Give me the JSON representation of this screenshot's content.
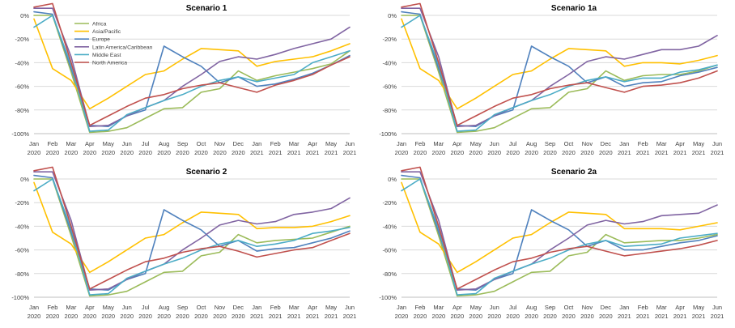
{
  "chart_data": [
    {
      "type": "line",
      "title": "Scenario 1",
      "xlabel": "",
      "ylabel": "",
      "ylim": [
        -100,
        0
      ],
      "yticks": [
        0,
        -20,
        -40,
        -60,
        -80,
        -100
      ],
      "ytick_labels": [
        "0%",
        "-20%",
        "-40%",
        "-60%",
        "-80%",
        "-100%"
      ],
      "categories": [
        "Jan 2020",
        "Feb 2020",
        "Mar 2020",
        "Apr 2020",
        "May 2020",
        "Jun 2020",
        "Jul 2020",
        "Aug 2020",
        "Sep 2020",
        "Oct 2020",
        "Nov 2020",
        "Dec 2020",
        "Jan 2021",
        "Feb 2021",
        "Mar 2021",
        "Apr 2021",
        "May 2021",
        "Jun 2021"
      ],
      "category_lines": [
        [
          "Jan",
          "2020"
        ],
        [
          "Feb",
          "2020"
        ],
        [
          "Mar",
          "2020"
        ],
        [
          "Apr",
          "2020"
        ],
        [
          "May",
          "2020"
        ],
        [
          "Jun",
          "2020"
        ],
        [
          "Jul",
          "2020"
        ],
        [
          "Aug",
          "2020"
        ],
        [
          "Sep",
          "2020"
        ],
        [
          "Oct",
          "2020"
        ],
        [
          "Nov",
          "2020"
        ],
        [
          "Dec",
          "2020"
        ],
        [
          "Jan",
          "2021"
        ],
        [
          "Feb",
          "2021"
        ],
        [
          "Mar",
          "2021"
        ],
        [
          "Apr",
          "2021"
        ],
        [
          "May",
          "2021"
        ],
        [
          "Jun",
          "2021"
        ]
      ],
      "legend": "top-left",
      "series": [
        {
          "name": "Africa",
          "color": "#9bbb59",
          "values": [
            0,
            0,
            -48,
            -99,
            -98,
            -95,
            -87,
            -79,
            -78,
            -65,
            -62,
            -47,
            -55,
            -51,
            -48,
            -45,
            -41,
            -30
          ]
        },
        {
          "name": "Asia/Pacific",
          "color": "#ffc000",
          "values": [
            -3,
            -45,
            -55,
            -79,
            -70,
            -60,
            -50,
            -47,
            -37,
            -28,
            -29,
            -30,
            -43,
            -39,
            -37,
            -35,
            -30,
            -24
          ]
        },
        {
          "name": "Europe",
          "color": "#4f81bd",
          "values": [
            3,
            1,
            -45,
            -93,
            -94,
            -85,
            -80,
            -26,
            -35,
            -43,
            -57,
            -52,
            -60,
            -58,
            -54,
            -49,
            -42,
            -34
          ]
        },
        {
          "name": "Latin America/Caribbean",
          "color": "#8064a2",
          "values": [
            6,
            6,
            -35,
            -94,
            -93,
            -85,
            -78,
            -72,
            -60,
            -50,
            -39,
            -35,
            -37,
            -33,
            -28,
            -24,
            -20,
            -10
          ]
        },
        {
          "name": "Middle East",
          "color": "#4bacc6",
          "values": [
            -10,
            0,
            -42,
            -98,
            -97,
            -84,
            -78,
            -72,
            -67,
            -60,
            -55,
            -52,
            -56,
            -53,
            -50,
            -40,
            -35,
            -30
          ]
        },
        {
          "name": "North America",
          "color": "#c0504d",
          "values": [
            7,
            10,
            -40,
            -93,
            -85,
            -77,
            -70,
            -67,
            -62,
            -59,
            -57,
            -61,
            -65,
            -59,
            -55,
            -50,
            -42,
            -35
          ]
        }
      ]
    },
    {
      "type": "line",
      "title": "Scenario 1a",
      "xlabel": "",
      "ylabel": "",
      "ylim": [
        -100,
        0
      ],
      "yticks": [
        0,
        -20,
        -40,
        -60,
        -80,
        -100
      ],
      "ytick_labels": [
        "0%",
        "-20%",
        "-40%",
        "-60%",
        "-80%",
        "-100%"
      ],
      "categories": [
        "Jan 2020",
        "Feb 2020",
        "Mar 2020",
        "Apr 2020",
        "May 2020",
        "Jun 2020",
        "Jul 2020",
        "Aug 2020",
        "Sep 2020",
        "Oct 2020",
        "Nov 2020",
        "Dec 2020",
        "Jan 2021",
        "Feb 2021",
        "Mar 2021",
        "Apr 2021",
        "May 2021",
        "Jun 2021"
      ],
      "category_lines": [
        [
          "Jan",
          "2020"
        ],
        [
          "Feb",
          "2020"
        ],
        [
          "Mar",
          "2020"
        ],
        [
          "Apr",
          "2020"
        ],
        [
          "May",
          "2020"
        ],
        [
          "Jun",
          "2020"
        ],
        [
          "Jul",
          "2020"
        ],
        [
          "Aug",
          "2020"
        ],
        [
          "Sep",
          "2020"
        ],
        [
          "Oct",
          "2020"
        ],
        [
          "Nov",
          "2020"
        ],
        [
          "Dec",
          "2020"
        ],
        [
          "Jan",
          "2021"
        ],
        [
          "Feb",
          "2021"
        ],
        [
          "Mar",
          "2021"
        ],
        [
          "Apr",
          "2021"
        ],
        [
          "May",
          "2021"
        ],
        [
          "Jun",
          "2021"
        ]
      ],
      "series": [
        {
          "name": "Africa",
          "color": "#9bbb59",
          "values": [
            0,
            0,
            -48,
            -99,
            -98,
            -95,
            -87,
            -79,
            -78,
            -65,
            -62,
            -47,
            -55,
            -51,
            -50,
            -50,
            -47,
            -42
          ]
        },
        {
          "name": "Asia/Pacific",
          "color": "#ffc000",
          "values": [
            -3,
            -45,
            -55,
            -79,
            -70,
            -60,
            -50,
            -47,
            -37,
            -28,
            -29,
            -30,
            -43,
            -40,
            -40,
            -41,
            -38,
            -34
          ]
        },
        {
          "name": "Europe",
          "color": "#4f81bd",
          "values": [
            3,
            1,
            -45,
            -93,
            -94,
            -85,
            -80,
            -26,
            -35,
            -43,
            -57,
            -52,
            -60,
            -57,
            -56,
            -51,
            -48,
            -44
          ]
        },
        {
          "name": "Latin America/Caribbean",
          "color": "#8064a2",
          "values": [
            6,
            6,
            -35,
            -94,
            -93,
            -85,
            -78,
            -72,
            -60,
            -50,
            -39,
            -35,
            -37,
            -33,
            -29,
            -29,
            -26,
            -17
          ]
        },
        {
          "name": "Middle East",
          "color": "#4bacc6",
          "values": [
            -10,
            0,
            -42,
            -98,
            -97,
            -84,
            -78,
            -72,
            -67,
            -60,
            -55,
            -52,
            -56,
            -53,
            -53,
            -48,
            -46,
            -42
          ]
        },
        {
          "name": "North America",
          "color": "#c0504d",
          "values": [
            7,
            10,
            -40,
            -93,
            -85,
            -77,
            -70,
            -67,
            -62,
            -59,
            -57,
            -61,
            -65,
            -60,
            -59,
            -57,
            -53,
            -47
          ]
        }
      ]
    },
    {
      "type": "line",
      "title": "Scenario 2",
      "xlabel": "",
      "ylabel": "",
      "ylim": [
        -100,
        0
      ],
      "yticks": [
        0,
        -20,
        -40,
        -60,
        -80,
        -100
      ],
      "ytick_labels": [
        "0%",
        "-20%",
        "-40%",
        "-60%",
        "-80%",
        "-100%"
      ],
      "categories": [
        "Jan 2020",
        "Feb 2020",
        "Mar 2020",
        "Apr 2020",
        "May 2020",
        "Jun 2020",
        "Jul 2020",
        "Aug 2020",
        "Sep 2020",
        "Oct 2020",
        "Nov 2020",
        "Dec 2020",
        "Jan 2021",
        "Feb 2021",
        "Mar 2021",
        "Apr 2021",
        "May 2021",
        "Jun 2021"
      ],
      "category_lines": [
        [
          "Jan",
          "2020"
        ],
        [
          "Feb",
          "2020"
        ],
        [
          "Mar",
          "2020"
        ],
        [
          "Apr",
          "2020"
        ],
        [
          "May",
          "2020"
        ],
        [
          "Jun",
          "2020"
        ],
        [
          "Jul",
          "2020"
        ],
        [
          "Aug",
          "2020"
        ],
        [
          "Sep",
          "2020"
        ],
        [
          "Oct",
          "2020"
        ],
        [
          "Nov",
          "2020"
        ],
        [
          "Dec",
          "2020"
        ],
        [
          "Jan",
          "2021"
        ],
        [
          "Feb",
          "2021"
        ],
        [
          "Mar",
          "2021"
        ],
        [
          "Apr",
          "2021"
        ],
        [
          "May",
          "2021"
        ],
        [
          "Jun",
          "2021"
        ]
      ],
      "series": [
        {
          "name": "Africa",
          "color": "#9bbb59",
          "values": [
            0,
            0,
            -48,
            -99,
            -98,
            -95,
            -87,
            -79,
            -78,
            -65,
            -62,
            -47,
            -54,
            -52,
            -51,
            -50,
            -45,
            -40
          ]
        },
        {
          "name": "Asia/Pacific",
          "color": "#ffc000",
          "values": [
            -3,
            -45,
            -55,
            -79,
            -70,
            -60,
            -50,
            -47,
            -37,
            -28,
            -29,
            -30,
            -42,
            -41,
            -41,
            -40,
            -36,
            -31
          ]
        },
        {
          "name": "Europe",
          "color": "#4f81bd",
          "values": [
            3,
            1,
            -45,
            -93,
            -94,
            -85,
            -80,
            -26,
            -35,
            -43,
            -57,
            -52,
            -61,
            -59,
            -58,
            -54,
            -50,
            -44
          ]
        },
        {
          "name": "Latin America/Caribbean",
          "color": "#8064a2",
          "values": [
            6,
            6,
            -35,
            -94,
            -93,
            -85,
            -78,
            -72,
            -60,
            -50,
            -39,
            -35,
            -38,
            -36,
            -30,
            -28,
            -25,
            -16
          ]
        },
        {
          "name": "Middle East",
          "color": "#4bacc6",
          "values": [
            -10,
            0,
            -42,
            -98,
            -97,
            -84,
            -78,
            -72,
            -67,
            -60,
            -55,
            -52,
            -57,
            -55,
            -52,
            -46,
            -44,
            -41
          ]
        },
        {
          "name": "North America",
          "color": "#c0504d",
          "values": [
            7,
            10,
            -40,
            -93,
            -85,
            -77,
            -70,
            -67,
            -62,
            -59,
            -57,
            -61,
            -66,
            -63,
            -60,
            -58,
            -52,
            -46
          ]
        }
      ]
    },
    {
      "type": "line",
      "title": "Scenario 2a",
      "xlabel": "",
      "ylabel": "",
      "ylim": [
        -100,
        0
      ],
      "yticks": [
        0,
        -20,
        -40,
        -60,
        -80,
        -100
      ],
      "ytick_labels": [
        "0%",
        "-20%",
        "-40%",
        "-60%",
        "-80%",
        "-100%"
      ],
      "categories": [
        "Jan 2020",
        "Feb 2020",
        "Mar 2020",
        "Apr 2020",
        "May 2020",
        "Jun 2020",
        "Jul 2020",
        "Aug 2020",
        "Sep 2020",
        "Oct 2020",
        "Nov 2020",
        "Dec 2020",
        "Jan 2021",
        "Feb 2021",
        "Mar 2021",
        "Apr 2021",
        "May 2021",
        "Jun 2021"
      ],
      "category_lines": [
        [
          "Jan",
          "2020"
        ],
        [
          "Feb",
          "2020"
        ],
        [
          "Mar",
          "2020"
        ],
        [
          "Apr",
          "2020"
        ],
        [
          "May",
          "2020"
        ],
        [
          "Jun",
          "2020"
        ],
        [
          "Jul",
          "2020"
        ],
        [
          "Aug",
          "2020"
        ],
        [
          "Sep",
          "2020"
        ],
        [
          "Oct",
          "2020"
        ],
        [
          "Nov",
          "2020"
        ],
        [
          "Dec",
          "2020"
        ],
        [
          "Jan",
          "2021"
        ],
        [
          "Feb",
          "2021"
        ],
        [
          "Mar",
          "2021"
        ],
        [
          "Apr",
          "2021"
        ],
        [
          "May",
          "2021"
        ],
        [
          "Jun",
          "2021"
        ]
      ],
      "series": [
        {
          "name": "Africa",
          "color": "#9bbb59",
          "values": [
            0,
            0,
            -48,
            -99,
            -98,
            -95,
            -87,
            -79,
            -78,
            -65,
            -62,
            -47,
            -54,
            -53,
            -52,
            -52,
            -50,
            -47
          ]
        },
        {
          "name": "Asia/Pacific",
          "color": "#ffc000",
          "values": [
            -3,
            -45,
            -55,
            -79,
            -70,
            -60,
            -50,
            -47,
            -37,
            -28,
            -29,
            -30,
            -42,
            -42,
            -42,
            -43,
            -40,
            -37
          ]
        },
        {
          "name": "Europe",
          "color": "#4f81bd",
          "values": [
            3,
            1,
            -45,
            -93,
            -94,
            -85,
            -80,
            -26,
            -35,
            -43,
            -57,
            -52,
            -60,
            -60,
            -57,
            -54,
            -52,
            -48
          ]
        },
        {
          "name": "Latin America/Caribbean",
          "color": "#8064a2",
          "values": [
            6,
            6,
            -35,
            -94,
            -93,
            -85,
            -78,
            -72,
            -60,
            -50,
            -39,
            -35,
            -38,
            -36,
            -31,
            -30,
            -29,
            -22
          ]
        },
        {
          "name": "Middle East",
          "color": "#4bacc6",
          "values": [
            -10,
            0,
            -42,
            -98,
            -97,
            -84,
            -78,
            -72,
            -67,
            -60,
            -55,
            -52,
            -57,
            -56,
            -55,
            -50,
            -48,
            -46
          ]
        },
        {
          "name": "North America",
          "color": "#c0504d",
          "values": [
            7,
            10,
            -40,
            -93,
            -85,
            -77,
            -70,
            -67,
            -62,
            -59,
            -57,
            -61,
            -65,
            -63,
            -61,
            -59,
            -56,
            -52
          ]
        }
      ]
    }
  ]
}
